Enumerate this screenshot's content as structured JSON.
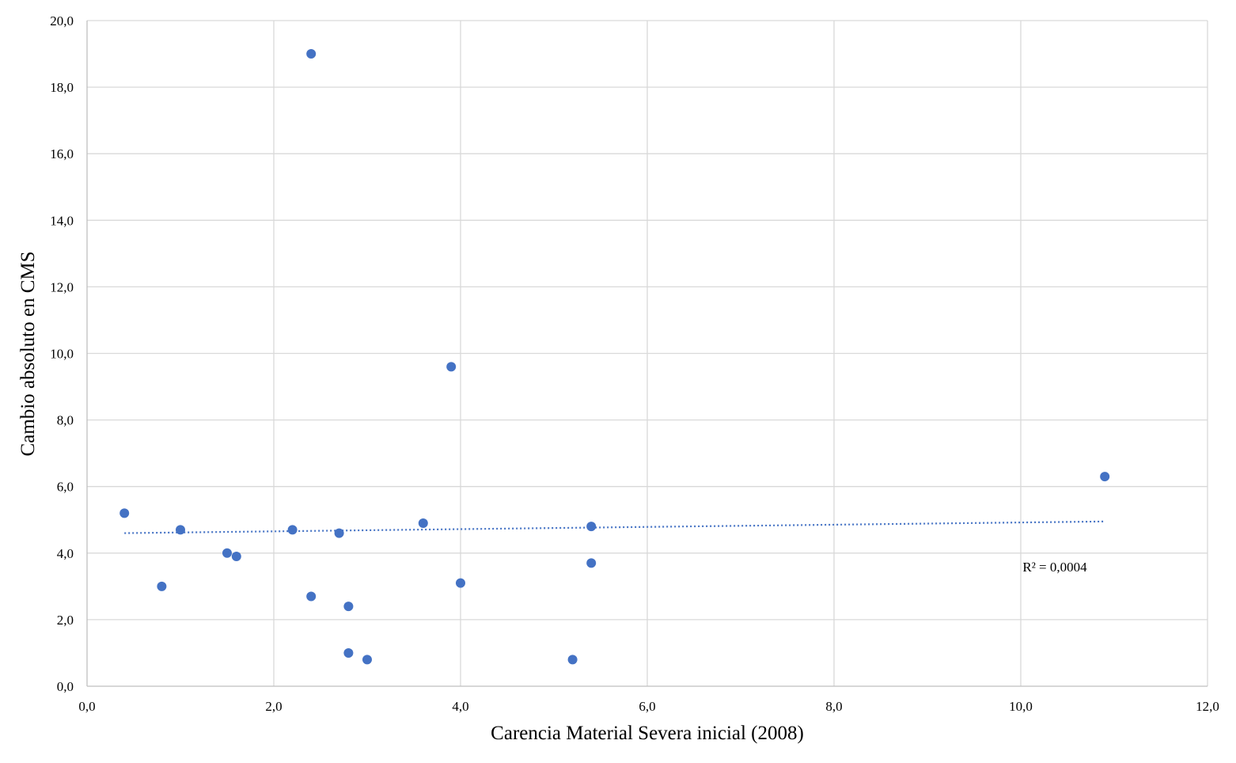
{
  "chart_data": {
    "type": "scatter",
    "title": "",
    "xlabel": "Carencia Material Severa inicial (2008)",
    "ylabel": "Cambio absoluto en CMS",
    "xlim": [
      0,
      12
    ],
    "ylim": [
      0,
      20
    ],
    "x_ticks": [
      "0,0",
      "2,0",
      "4,0",
      "6,0",
      "8,0",
      "10,0",
      "12,0"
    ],
    "y_ticks": [
      "0,0",
      "2,0",
      "4,0",
      "6,0",
      "8,0",
      "10,0",
      "12,0",
      "14,0",
      "16,0",
      "18,0",
      "20,0"
    ],
    "grid": true,
    "point_color": "#4472c4",
    "trendline_color": "#4472c4",
    "series": [
      {
        "x": [
          0.4,
          0.8,
          1.0,
          1.5,
          1.6,
          2.2,
          2.4,
          2.4,
          2.7,
          2.8,
          2.8,
          3.0,
          3.6,
          3.9,
          4.0,
          5.2,
          5.4,
          5.4,
          10.9
        ],
        "y": [
          5.2,
          3.0,
          4.7,
          4.0,
          3.9,
          4.7,
          19.0,
          2.7,
          4.6,
          2.4,
          1.0,
          0.8,
          4.9,
          9.6,
          3.1,
          0.8,
          4.8,
          3.7,
          6.3
        ]
      }
    ],
    "trendline": {
      "type": "linear",
      "x": [
        0.4,
        10.9
      ],
      "y": [
        4.6,
        4.95
      ],
      "style": "dotted"
    },
    "annotations": [
      {
        "text": "R² = 0,0004",
        "x": 10.02,
        "y": 3.45
      }
    ]
  }
}
